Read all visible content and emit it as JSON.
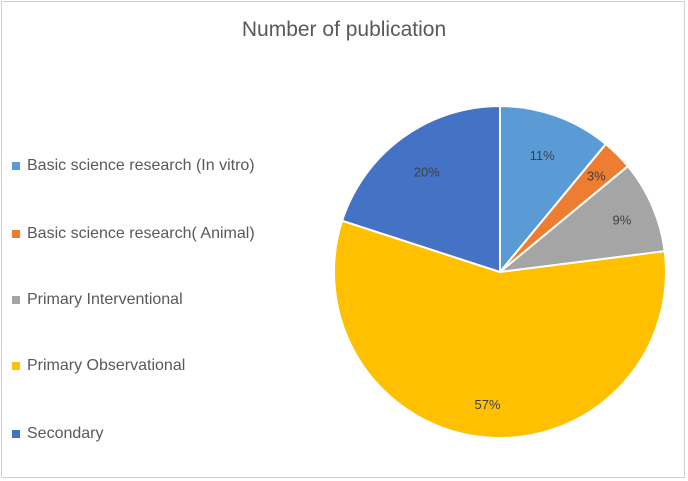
{
  "chart_data": {
    "type": "pie",
    "title": "Number of publication",
    "slices": [
      {
        "name": "Basic science research (In vitro)",
        "value": 11,
        "label": "11%",
        "color": "#5B9BD5"
      },
      {
        "name": "Basic science research( Animal)",
        "value": 3,
        "label": "3%",
        "color": "#ED7D31"
      },
      {
        "name": "Primary Interventional",
        "value": 9,
        "label": "9%",
        "color": "#A5A5A5"
      },
      {
        "name": "Primary Observational",
        "value": 57,
        "label": "57%",
        "color": "#FFC000"
      },
      {
        "name": "Secondary",
        "value": 20,
        "label": "20%",
        "color": "#4472C4"
      }
    ],
    "legend_position": "left"
  }
}
